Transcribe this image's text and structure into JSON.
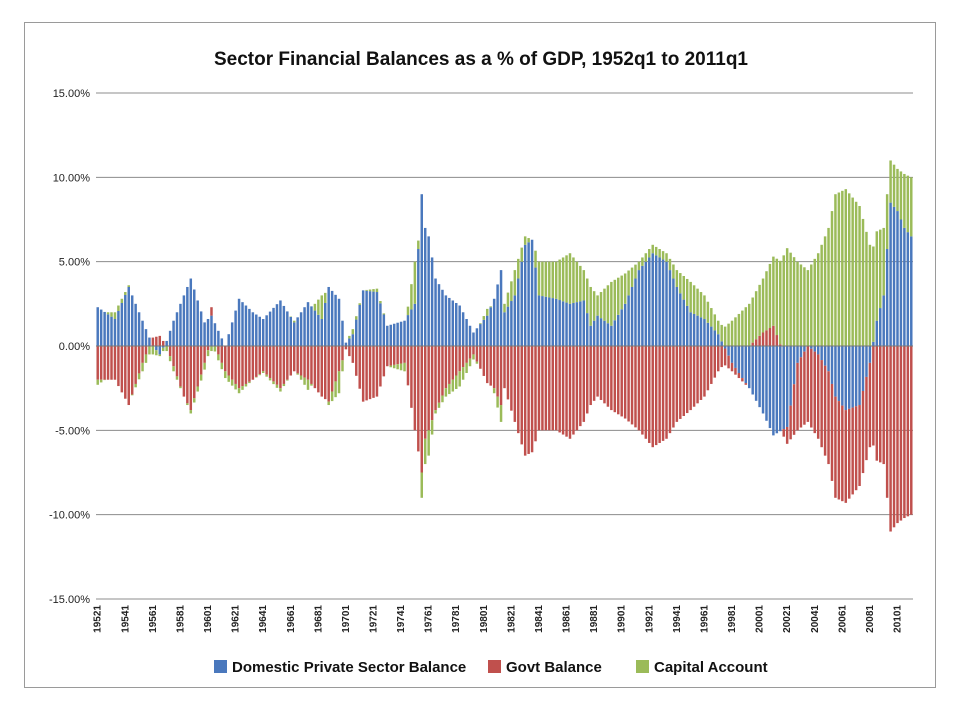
{
  "colors": {
    "private": "#4a78bd",
    "govt": "#c0504d",
    "capital": "#9bbb59",
    "grid": "#8c8c8c"
  },
  "chart_data": {
    "type": "bar",
    "stacked": true,
    "title": "Sector Financial Balances as a % of GDP, 1952q1 to 2011q1",
    "xlabel": "",
    "ylabel": "",
    "ylim": [
      -15,
      15
    ],
    "ytick_labels": [
      "15.00%",
      "10.00%",
      "5.00%",
      "0.00%",
      "-5.00%",
      "-10.00%",
      "-15.00%"
    ],
    "yticks": [
      15,
      10,
      5,
      0,
      -5,
      -10,
      -15
    ],
    "x_tick_labels": [
      "19521",
      "19541",
      "19561",
      "19581",
      "19601",
      "19621",
      "19641",
      "19661",
      "19681",
      "19701",
      "19721",
      "19741",
      "19761",
      "19781",
      "19801",
      "19821",
      "19841",
      "19861",
      "19881",
      "19901",
      "19921",
      "19941",
      "19961",
      "19981",
      "20001",
      "20021",
      "20041",
      "20061",
      "20081",
      "20101"
    ],
    "grid": true,
    "legend_position": "bottom",
    "x_start_quarter": "1952q1",
    "x_end_quarter": "2011q1",
    "series": [
      {
        "name": "Domestic Private Sector Balance",
        "anchors": [
          [
            "1952q1",
            2.3
          ],
          [
            "1953q2",
            1.6
          ],
          [
            "1954q2",
            3.5
          ],
          [
            "1955q2",
            1.5
          ],
          [
            "1956q1",
            0.0
          ],
          [
            "1956q3",
            -0.5
          ],
          [
            "1957q1",
            0.3
          ],
          [
            "1957q3",
            1.5
          ],
          [
            "1958q2",
            3.0
          ],
          [
            "1958q4",
            4.0
          ],
          [
            "1959q4",
            1.4
          ],
          [
            "1960q2",
            1.8
          ],
          [
            "1961q2",
            0.0
          ],
          [
            "1962q2",
            2.8
          ],
          [
            "1963q2",
            2.0
          ],
          [
            "1964q1",
            1.6
          ],
          [
            "1965q2",
            2.7
          ],
          [
            "1966q2",
            1.4
          ],
          [
            "1967q2",
            2.6
          ],
          [
            "1968q2",
            1.6
          ],
          [
            "1968q4",
            3.5
          ],
          [
            "1969q3",
            2.8
          ],
          [
            "1970q1",
            0.2
          ],
          [
            "1970q3",
            0.7
          ],
          [
            "1971q2",
            3.3
          ],
          [
            "1972q2",
            3.2
          ],
          [
            "1973q1",
            1.2
          ],
          [
            "1974q2",
            1.5
          ],
          [
            "1975q1",
            2.5
          ],
          [
            "1975q3",
            9.0
          ],
          [
            "1975q4",
            7.0
          ],
          [
            "1976q1",
            6.5
          ],
          [
            "1976q3",
            4.0
          ],
          [
            "1977q2",
            3.0
          ],
          [
            "1978q2",
            2.4
          ],
          [
            "1979q2",
            0.8
          ],
          [
            "1980q2",
            1.8
          ],
          [
            "1980q4",
            2.8
          ],
          [
            "1981q2",
            4.5
          ],
          [
            "1981q3",
            2.0
          ],
          [
            "1982q2",
            3.0
          ],
          [
            "1983q1",
            6.0
          ],
          [
            "1983q3",
            6.3
          ],
          [
            "1984q1",
            3.0
          ],
          [
            "1985q2",
            2.8
          ],
          [
            "1986q2",
            2.5
          ],
          [
            "1987q2",
            2.7
          ],
          [
            "1987q4",
            1.2
          ],
          [
            "1988q2",
            1.8
          ],
          [
            "1989q2",
            1.2
          ],
          [
            "1990q2",
            2.5
          ],
          [
            "1991q2",
            4.5
          ],
          [
            "1992q2",
            5.5
          ],
          [
            "1993q2",
            5.0
          ],
          [
            "1994q1",
            3.5
          ],
          [
            "1995q1",
            2.0
          ],
          [
            "1996q1",
            1.6
          ],
          [
            "1997q1",
            0.7
          ],
          [
            "1998q1",
            -1.0
          ],
          [
            "1999q2",
            -2.5
          ],
          [
            "2000q2",
            -4.0
          ],
          [
            "2001q1",
            -5.3
          ],
          [
            "2002q1",
            -4.8
          ],
          [
            "2002q4",
            -1.0
          ],
          [
            "2003q3",
            0.0
          ],
          [
            "2004q2",
            -0.5
          ],
          [
            "2005q1",
            -1.5
          ],
          [
            "2005q3",
            -3.0
          ],
          [
            "2006q2",
            -3.8
          ],
          [
            "2007q2",
            -3.5
          ],
          [
            "2008q1",
            -1.0
          ],
          [
            "2008q3",
            1.5
          ],
          [
            "2009q1",
            3.0
          ],
          [
            "2009q3",
            8.5
          ],
          [
            "2010q1",
            8.0
          ],
          [
            "2010q3",
            7.0
          ],
          [
            "2011q1",
            6.5
          ]
        ]
      },
      {
        "name": "Govt Balance",
        "anchors": [
          [
            "1952q1",
            -2.0
          ],
          [
            "1953q2",
            -2.0
          ],
          [
            "1954q2",
            -3.5
          ],
          [
            "1955q2",
            -1.0
          ],
          [
            "1956q1",
            0.5
          ],
          [
            "1956q3",
            0.6
          ],
          [
            "1957q1",
            0.0
          ],
          [
            "1957q3",
            -1.2
          ],
          [
            "1958q2",
            -3.0
          ],
          [
            "1958q4",
            -3.8
          ],
          [
            "1959q4",
            -1.0
          ],
          [
            "1960q2",
            0.5
          ],
          [
            "1961q2",
            -1.5
          ],
          [
            "1962q2",
            -2.5
          ],
          [
            "1963q2",
            -2.0
          ],
          [
            "1964q1",
            -1.5
          ],
          [
            "1965q2",
            -2.5
          ],
          [
            "1966q2",
            -1.5
          ],
          [
            "1967q2",
            -2.0
          ],
          [
            "1968q2",
            -3.0
          ],
          [
            "1968q4",
            -3.3
          ],
          [
            "1969q3",
            -1.5
          ],
          [
            "1970q1",
            -0.2
          ],
          [
            "1970q3",
            -1.0
          ],
          [
            "1971q2",
            -3.3
          ],
          [
            "1972q2",
            -3.0
          ],
          [
            "1973q1",
            -1.2
          ],
          [
            "1974q2",
            -1.0
          ],
          [
            "1975q1",
            -5.0
          ],
          [
            "1975q3",
            -7.5
          ],
          [
            "1975q4",
            -5.5
          ],
          [
            "1976q1",
            -5.0
          ],
          [
            "1976q3",
            -3.8
          ],
          [
            "1977q2",
            -2.5
          ],
          [
            "1978q2",
            -1.5
          ],
          [
            "1979q2",
            -0.5
          ],
          [
            "1980q2",
            -2.2
          ],
          [
            "1980q4",
            -2.5
          ],
          [
            "1981q2",
            -3.5
          ],
          [
            "1981q3",
            -2.5
          ],
          [
            "1982q2",
            -4.5
          ],
          [
            "1983q1",
            -6.5
          ],
          [
            "1983q3",
            -6.3
          ],
          [
            "1984q1",
            -5.0
          ],
          [
            "1985q2",
            -5.0
          ],
          [
            "1986q2",
            -5.5
          ],
          [
            "1987q2",
            -4.5
          ],
          [
            "1987q4",
            -3.5
          ],
          [
            "1988q2",
            -3.0
          ],
          [
            "1989q2",
            -3.8
          ],
          [
            "1990q2",
            -4.3
          ],
          [
            "1991q2",
            -5.0
          ],
          [
            "1992q2",
            -6.0
          ],
          [
            "1993q2",
            -5.5
          ],
          [
            "1994q1",
            -4.5
          ],
          [
            "1995q1",
            -3.8
          ],
          [
            "1996q1",
            -3.0
          ],
          [
            "1997q1",
            -1.5
          ],
          [
            "1998q1",
            -0.5
          ],
          [
            "1999q2",
            0.0
          ],
          [
            "2000q2",
            0.8
          ],
          [
            "2001q1",
            1.2
          ],
          [
            "2002q1",
            -1.0
          ],
          [
            "2002q4",
            -4.0
          ],
          [
            "2003q3",
            -4.5
          ],
          [
            "2004q2",
            -5.0
          ],
          [
            "2005q1",
            -5.5
          ],
          [
            "2005q3",
            -6.0
          ],
          [
            "2006q2",
            -5.5
          ],
          [
            "2007q2",
            -4.8
          ],
          [
            "2008q1",
            -5.0
          ],
          [
            "2008q3",
            -6.8
          ],
          [
            "2009q1",
            -7.0
          ],
          [
            "2009q3",
            -11.0
          ],
          [
            "2010q1",
            -10.5
          ],
          [
            "2010q3",
            -10.2
          ],
          [
            "2011q1",
            -10.0
          ]
        ]
      },
      {
        "name": "Capital Account",
        "anchors": [
          [
            "1952q1",
            -0.3
          ],
          [
            "1953q2",
            0.4
          ],
          [
            "1954q2",
            0.1
          ],
          [
            "1955q2",
            -0.5
          ],
          [
            "1956q1",
            -0.5
          ],
          [
            "1956q3",
            -0.1
          ],
          [
            "1957q1",
            -0.3
          ],
          [
            "1957q3",
            -0.3
          ],
          [
            "1958q2",
            0.0
          ],
          [
            "1958q4",
            -0.2
          ],
          [
            "1959q4",
            -0.4
          ],
          [
            "1960q2",
            -0.3
          ],
          [
            "1961q2",
            -0.4
          ],
          [
            "1962q2",
            -0.3
          ],
          [
            "1963q2",
            0.0
          ],
          [
            "1964q1",
            -0.1
          ],
          [
            "1965q2",
            -0.2
          ],
          [
            "1966q2",
            0.1
          ],
          [
            "1967q2",
            -0.6
          ],
          [
            "1968q2",
            1.4
          ],
          [
            "1968q4",
            -0.2
          ],
          [
            "1969q3",
            -1.3
          ],
          [
            "1970q1",
            0.0
          ],
          [
            "1970q3",
            0.3
          ],
          [
            "1971q2",
            0.0
          ],
          [
            "1972q2",
            0.2
          ],
          [
            "1973q1",
            0.0
          ],
          [
            "1974q2",
            -0.5
          ],
          [
            "1975q1",
            2.5
          ],
          [
            "1975q3",
            -1.5
          ],
          [
            "1975q4",
            -1.5
          ],
          [
            "1976q1",
            -1.5
          ],
          [
            "1976q3",
            -0.2
          ],
          [
            "1977q2",
            -0.5
          ],
          [
            "1978q2",
            -0.9
          ],
          [
            "1979q2",
            -0.3
          ],
          [
            "1980q2",
            0.4
          ],
          [
            "1980q4",
            -0.3
          ],
          [
            "1981q2",
            -1.0
          ],
          [
            "1981q3",
            0.5
          ],
          [
            "1982q2",
            1.5
          ],
          [
            "1983q1",
            0.5
          ],
          [
            "1983q3",
            0.0
          ],
          [
            "1984q1",
            2.0
          ],
          [
            "1985q2",
            2.2
          ],
          [
            "1986q2",
            3.0
          ],
          [
            "1987q2",
            1.8
          ],
          [
            "1987q4",
            2.3
          ],
          [
            "1988q2",
            1.2
          ],
          [
            "1989q2",
            2.6
          ],
          [
            "1990q2",
            1.8
          ],
          [
            "1991q2",
            0.5
          ],
          [
            "1992q2",
            0.5
          ],
          [
            "1993q2",
            0.5
          ],
          [
            "1994q1",
            1.0
          ],
          [
            "1995q1",
            1.8
          ],
          [
            "1996q1",
            1.4
          ],
          [
            "1997q1",
            0.8
          ],
          [
            "1998q1",
            1.5
          ],
          [
            "1999q2",
            2.5
          ],
          [
            "2000q2",
            3.2
          ],
          [
            "2001q1",
            4.1
          ],
          [
            "2002q1",
            5.8
          ],
          [
            "2002q4",
            5.0
          ],
          [
            "2003q3",
            4.5
          ],
          [
            "2004q2",
            5.5
          ],
          [
            "2005q1",
            7.0
          ],
          [
            "2005q3",
            9.0
          ],
          [
            "2006q2",
            9.3
          ],
          [
            "2007q2",
            8.3
          ],
          [
            "2008q1",
            6.0
          ],
          [
            "2008q3",
            5.3
          ],
          [
            "2009q1",
            4.0
          ],
          [
            "2009q3",
            2.5
          ],
          [
            "2010q1",
            2.5
          ],
          [
            "2010q3",
            3.2
          ],
          [
            "2011q1",
            3.5
          ]
        ]
      }
    ]
  }
}
